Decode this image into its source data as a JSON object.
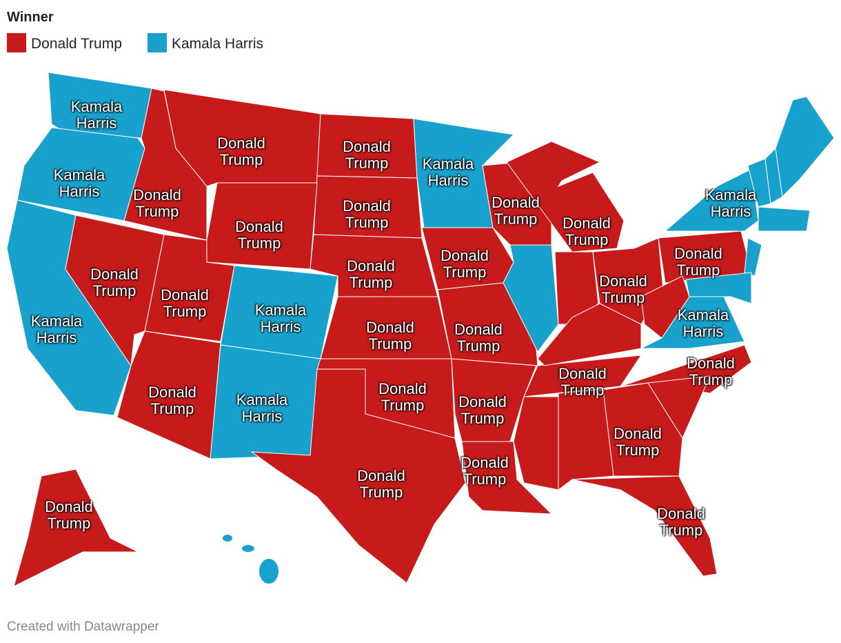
{
  "legend": {
    "title": "Winner",
    "items": [
      {
        "name": "Donald Trump",
        "color": "#c71b1b"
      },
      {
        "name": "Kamala Harris",
        "color": "#18a1cd"
      }
    ]
  },
  "map": {
    "labels": [
      "Kamala Harris",
      "Kamala Harris",
      "Kamala Harris",
      "Donald Trump",
      "Donald Trump",
      "Donald Trump",
      "Donald Trump",
      "Donald Trump",
      "Donald Trump",
      "Donald Trump",
      "Donald Trump",
      "Kamala Harris",
      "Kamala Harris",
      "Kamala Harris",
      "Donald Trump",
      "Donald Trump",
      "Donald Trump",
      "Donald Trump",
      "Donald Trump",
      "Kamala Harris",
      "Donald Trump",
      "Donald Trump",
      "Kamala Harris",
      "Donald Trump",
      "Donald Trump",
      "Donald Trump",
      "Donald Trump",
      "Donald Trump",
      "Donald Trump",
      "Donald Trump",
      "Donald Trump",
      "Donald Trump",
      "Donald Trump"
    ]
  },
  "footer": "Created with Datawrapper"
}
